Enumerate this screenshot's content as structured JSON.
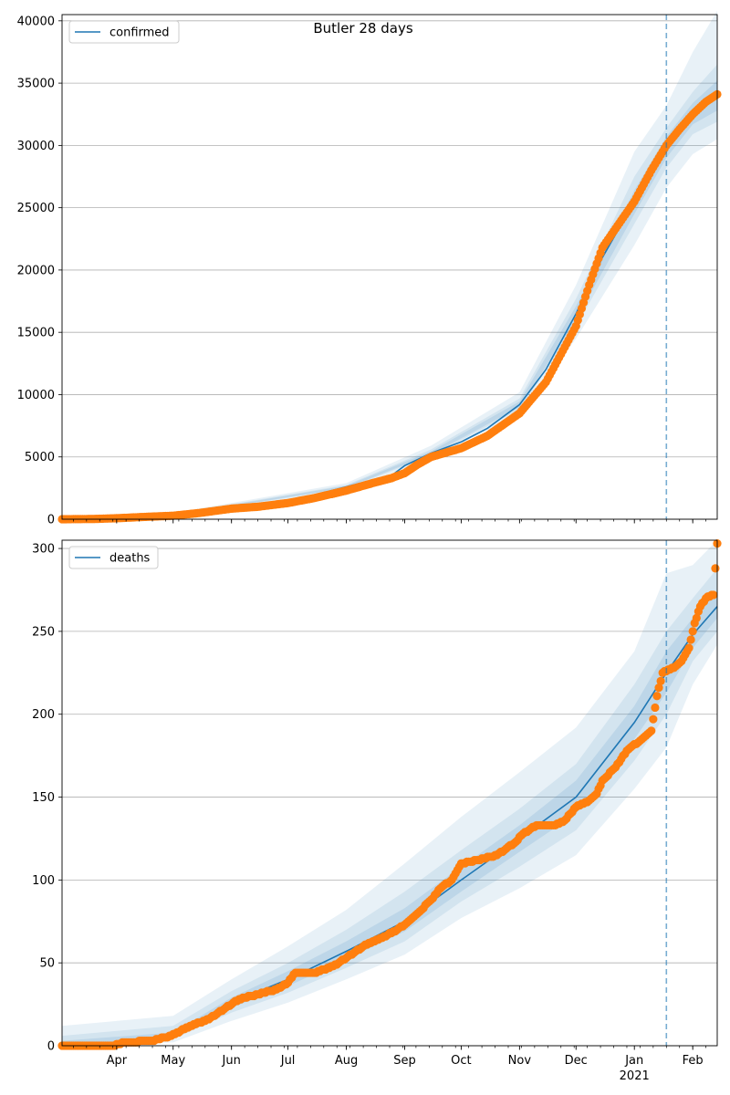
{
  "title": "Butler 28 days",
  "colors": {
    "line": "#1f77b4",
    "points": "#ff7f0e",
    "band": "#1f77b4",
    "grid": "#b0b0b0",
    "forecast_start": "#1f77b4"
  },
  "x_axis": {
    "months": [
      "Apr",
      "May",
      "Jun",
      "Jul",
      "Aug",
      "Sep",
      "Oct",
      "Nov",
      "Dec",
      "Jan",
      "Feb"
    ],
    "year_label": "2021",
    "start": "2020-03-03",
    "end": "2021-02-14",
    "forecast_start": "2021-01-18"
  },
  "chart_data": [
    {
      "type": "line",
      "title": "Butler 28 days",
      "legend": "confirmed",
      "legend_position": "top-left",
      "ylim": [
        0,
        40500
      ],
      "yticks": [
        0,
        5000,
        10000,
        15000,
        20000,
        25000,
        30000,
        35000,
        40000
      ],
      "ytick_labels": [
        "0",
        "5000",
        "10000",
        "15000",
        "20000",
        "25000",
        "30000",
        "35000",
        "40000"
      ],
      "grid": "horizontal",
      "model_line": [
        [
          "2020-03-03",
          0
        ],
        [
          "2020-04-01",
          100
        ],
        [
          "2020-05-01",
          320
        ],
        [
          "2020-06-01",
          950
        ],
        [
          "2020-07-01",
          1400
        ],
        [
          "2020-08-01",
          2600
        ],
        [
          "2020-08-25",
          3500
        ],
        [
          "2020-09-01",
          4300
        ],
        [
          "2020-09-15",
          5300
        ],
        [
          "2020-10-01",
          6200
        ],
        [
          "2020-10-15",
          7300
        ],
        [
          "2020-11-01",
          9200
        ],
        [
          "2020-11-15",
          12000
        ],
        [
          "2020-12-01",
          16500
        ],
        [
          "2020-12-15",
          21000
        ],
        [
          "2021-01-01",
          25500
        ],
        [
          "2021-01-18",
          29800
        ],
        [
          "2021-02-01",
          32500
        ],
        [
          "2021-02-14",
          34000
        ]
      ],
      "intervals": [
        {
          "level": "outer",
          "points": [
            [
              "2020-03-03",
              0,
              200
            ],
            [
              "2020-05-01",
              200,
              500
            ],
            [
              "2020-08-01",
              2300,
              2900
            ],
            [
              "2020-09-15",
              4900,
              5900
            ],
            [
              "2020-11-01",
              8400,
              10200
            ],
            [
              "2020-12-01",
              14500,
              18800
            ],
            [
              "2021-01-01",
              22000,
              29500
            ],
            [
              "2021-01-18",
              26600,
              33200
            ],
            [
              "2021-02-01",
              29300,
              37500
            ],
            [
              "2021-02-14",
              30500,
              40800
            ]
          ]
        },
        {
          "level": "middle",
          "points": [
            [
              "2020-03-03",
              0,
              150
            ],
            [
              "2020-05-01",
              250,
              420
            ],
            [
              "2020-08-01",
              2450,
              2750
            ],
            [
              "2020-09-15",
              5100,
              5600
            ],
            [
              "2020-11-01",
              8800,
              9700
            ],
            [
              "2020-12-01",
              15500,
              17700
            ],
            [
              "2021-01-01",
              23700,
              27500
            ],
            [
              "2021-01-18",
              28200,
              31400
            ],
            [
              "2021-02-01",
              30900,
              34300
            ],
            [
              "2021-02-14",
              31900,
              36500
            ]
          ]
        },
        {
          "level": "inner",
          "points": [
            [
              "2020-03-03",
              0,
              100
            ],
            [
              "2020-05-01",
              290,
              370
            ],
            [
              "2020-08-01",
              2520,
              2680
            ],
            [
              "2020-09-15",
              5200,
              5450
            ],
            [
              "2020-11-01",
              9000,
              9450
            ],
            [
              "2020-12-01",
              16000,
              17100
            ],
            [
              "2021-01-01",
              24500,
              26400
            ],
            [
              "2021-01-18",
              29000,
              30700
            ],
            [
              "2021-02-01",
              31700,
              33400
            ],
            [
              "2021-02-14",
              32800,
              35200
            ]
          ]
        }
      ],
      "observed_points": [
        [
          "2020-03-03",
          0
        ],
        [
          "2020-03-20",
          20
        ],
        [
          "2020-04-01",
          80
        ],
        [
          "2020-04-15",
          180
        ],
        [
          "2020-05-01",
          280
        ],
        [
          "2020-05-15",
          500
        ],
        [
          "2020-06-01",
          850
        ],
        [
          "2020-06-15",
          1000
        ],
        [
          "2020-07-01",
          1300
        ],
        [
          "2020-07-15",
          1700
        ],
        [
          "2020-08-01",
          2300
        ],
        [
          "2020-08-15",
          2900
        ],
        [
          "2020-08-25",
          3300
        ],
        [
          "2020-09-01",
          3700
        ],
        [
          "2020-09-08",
          4400
        ],
        [
          "2020-09-15",
          5000
        ],
        [
          "2020-10-01",
          5700
        ],
        [
          "2020-10-15",
          6700
        ],
        [
          "2020-11-01",
          8500
        ],
        [
          "2020-11-15",
          11000
        ],
        [
          "2020-12-01",
          15500
        ],
        [
          "2020-12-08",
          18800
        ],
        [
          "2020-12-15",
          21800
        ],
        [
          "2021-01-01",
          25500
        ],
        [
          "2021-01-10",
          28000
        ],
        [
          "2021-01-18",
          30000
        ],
        [
          "2021-01-25",
          31300
        ],
        [
          "2021-02-01",
          32500
        ],
        [
          "2021-02-08",
          33500
        ],
        [
          "2021-02-14",
          34100
        ]
      ]
    },
    {
      "type": "line",
      "title": "",
      "legend": "deaths",
      "legend_position": "top-left",
      "ylim": [
        0,
        305
      ],
      "yticks": [
        0,
        50,
        100,
        150,
        200,
        250,
        300
      ],
      "ytick_labels": [
        "0",
        "50",
        "100",
        "150",
        "200",
        "250",
        "300"
      ],
      "grid": "horizontal",
      "model_line": [
        [
          "2020-03-03",
          0
        ],
        [
          "2020-04-01",
          1
        ],
        [
          "2020-05-01",
          6
        ],
        [
          "2020-06-01",
          26
        ],
        [
          "2020-07-01",
          40
        ],
        [
          "2020-08-01",
          57
        ],
        [
          "2020-09-01",
          75
        ],
        [
          "2020-10-01",
          100
        ],
        [
          "2020-11-01",
          125
        ],
        [
          "2020-12-01",
          150
        ],
        [
          "2021-01-01",
          195
        ],
        [
          "2021-01-18",
          225
        ],
        [
          "2021-02-01",
          248
        ],
        [
          "2021-02-14",
          265
        ]
      ],
      "intervals": [
        {
          "level": "outer",
          "points": [
            [
              "2020-03-03",
              0,
              12
            ],
            [
              "2020-05-01",
              2,
              18
            ],
            [
              "2020-06-01",
              15,
              40
            ],
            [
              "2020-07-01",
              26,
              60
            ],
            [
              "2020-08-01",
              40,
              82
            ],
            [
              "2020-09-01",
              55,
              110
            ],
            [
              "2020-10-01",
              77,
              138
            ],
            [
              "2020-11-01",
              95,
              165
            ],
            [
              "2020-12-01",
              115,
              192
            ],
            [
              "2021-01-01",
              155,
              238
            ],
            [
              "2021-01-18",
              180,
              285
            ],
            [
              "2021-02-01",
              218,
              290
            ],
            [
              "2021-02-14",
              242,
              305
            ]
          ]
        },
        {
          "level": "middle",
          "points": [
            [
              "2020-03-03",
              0,
              6
            ],
            [
              "2020-05-01",
              4,
              12
            ],
            [
              "2020-06-01",
              20,
              33
            ],
            [
              "2020-07-01",
              32,
              50
            ],
            [
              "2020-08-01",
              47,
              70
            ],
            [
              "2020-09-01",
              63,
              93
            ],
            [
              "2020-10-01",
              87,
              118
            ],
            [
              "2020-11-01",
              108,
              143
            ],
            [
              "2020-12-01",
              130,
              170
            ],
            [
              "2021-01-01",
              172,
              218
            ],
            [
              "2021-01-18",
              200,
              250
            ],
            [
              "2021-02-01",
              232,
              270
            ],
            [
              "2021-02-14",
              250,
              288
            ]
          ]
        },
        {
          "level": "inner",
          "points": [
            [
              "2020-03-03",
              0,
              3
            ],
            [
              "2020-05-01",
              5,
              8
            ],
            [
              "2020-06-01",
              23,
              29
            ],
            [
              "2020-07-01",
              36,
              45
            ],
            [
              "2020-08-01",
              52,
              63
            ],
            [
              "2020-09-01",
              69,
              83
            ],
            [
              "2020-10-01",
              93,
              108
            ],
            [
              "2020-11-01",
              117,
              133
            ],
            [
              "2020-12-01",
              140,
              160
            ],
            [
              "2021-01-01",
              185,
              205
            ],
            [
              "2021-01-18",
              213,
              238
            ],
            [
              "2021-02-01",
              240,
              258
            ],
            [
              "2021-02-14",
              258,
              274
            ]
          ]
        }
      ],
      "observed_points": [
        [
          "2020-03-03",
          0
        ],
        [
          "2020-03-30",
          0
        ],
        [
          "2020-04-05",
          2
        ],
        [
          "2020-04-20",
          3
        ],
        [
          "2020-04-30",
          6
        ],
        [
          "2020-05-10",
          12
        ],
        [
          "2020-05-20",
          16
        ],
        [
          "2020-05-28",
          22
        ],
        [
          "2020-06-05",
          28
        ],
        [
          "2020-06-15",
          31
        ],
        [
          "2020-06-25",
          34
        ],
        [
          "2020-07-01",
          38
        ],
        [
          "2020-07-05",
          44
        ],
        [
          "2020-07-15",
          44
        ],
        [
          "2020-07-25",
          48
        ],
        [
          "2020-08-01",
          53
        ],
        [
          "2020-08-10",
          60
        ],
        [
          "2020-08-20",
          65
        ],
        [
          "2020-08-28",
          70
        ],
        [
          "2020-09-01",
          73
        ],
        [
          "2020-09-08",
          80
        ],
        [
          "2020-09-15",
          88
        ],
        [
          "2020-09-20",
          95
        ],
        [
          "2020-09-26",
          100
        ],
        [
          "2020-10-01",
          110
        ],
        [
          "2020-10-10",
          112
        ],
        [
          "2020-10-20",
          115
        ],
        [
          "2020-10-30",
          123
        ],
        [
          "2020-11-03",
          128
        ],
        [
          "2020-11-10",
          133
        ],
        [
          "2020-11-20",
          133
        ],
        [
          "2020-11-25",
          136
        ],
        [
          "2020-12-01",
          144
        ],
        [
          "2020-12-08",
          148
        ],
        [
          "2020-12-12",
          152
        ],
        [
          "2020-12-15",
          160
        ],
        [
          "2020-12-22",
          168
        ],
        [
          "2020-12-28",
          178
        ],
        [
          "2021-01-05",
          185
        ],
        [
          "2021-01-10",
          190
        ],
        [
          "2021-01-13",
          211
        ],
        [
          "2021-01-16",
          225
        ],
        [
          "2021-01-22",
          228
        ],
        [
          "2021-01-26",
          232
        ],
        [
          "2021-01-30",
          240
        ],
        [
          "2021-02-02",
          255
        ],
        [
          "2021-02-05",
          265
        ],
        [
          "2021-02-08",
          270
        ],
        [
          "2021-02-12",
          272
        ],
        [
          "2021-02-14",
          303
        ]
      ]
    }
  ]
}
